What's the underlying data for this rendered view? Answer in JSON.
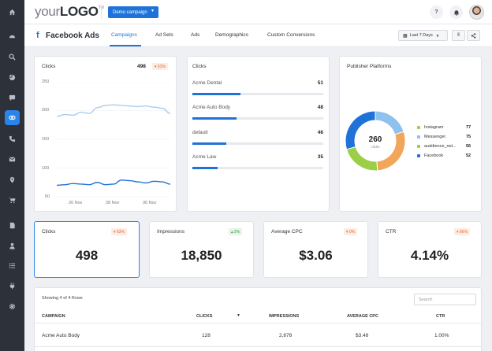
{
  "nav": {
    "icons": [
      "home-icon",
      "dashboard-icon",
      "search-icon",
      "pie-chart-icon",
      "chat-icon",
      "integrations-icon",
      "phone-icon",
      "mail-icon",
      "location-icon",
      "cart-icon",
      "document-icon",
      "user-icon",
      "list-icon",
      "plug-icon",
      "settings-icon"
    ],
    "active": "integrations-icon"
  },
  "topbar": {
    "logo_prefix": "your",
    "logo_bold": "LOGO",
    "logo_tm": "TM",
    "campaign_label": "Demo campaign",
    "help_label": "?"
  },
  "subheader": {
    "title": "Facebook Ads",
    "tabs": [
      "Campaigns",
      "Ad Sets",
      "Ads",
      "Demographics",
      "Custom Conversions"
    ],
    "active_tab": "Campaigns",
    "date_range": "Last 7 Days"
  },
  "clicks_chart": {
    "title": "Clicks",
    "value": "498",
    "delta": "▾ 63%",
    "y_ticks": [
      "250",
      "200",
      "150",
      "100",
      "50"
    ],
    "x_ticks": [
      "26 Nov",
      "28 Nov",
      "30 Nov"
    ]
  },
  "chart_data": {
    "type": "line",
    "title": "Clicks",
    "xlabel": "",
    "ylabel": "",
    "ylim": [
      50,
      250
    ],
    "x_ticks": [
      "26 Nov",
      "28 Nov",
      "30 Nov"
    ],
    "series": [
      {
        "role": "previous",
        "color": "#a9cdf0",
        "values": [
          190,
          193,
          192,
          197,
          195,
          205,
          209,
          210,
          209,
          208,
          207,
          208,
          206,
          204,
          195
        ]
      },
      {
        "role": "current",
        "color": "#1f73d8",
        "values": [
          70,
          71,
          73,
          72,
          71,
          75,
          71,
          72,
          79,
          78,
          76,
          74,
          77,
          76,
          72
        ]
      }
    ]
  },
  "clicks_list": {
    "title": "Clicks",
    "rows": [
      {
        "label": "Acme Dental",
        "value": "51",
        "fraction": 0.37
      },
      {
        "label": "Acme Auto Body",
        "value": "48",
        "fraction": 0.34
      },
      {
        "label": "default",
        "value": "46",
        "fraction": 0.26
      },
      {
        "label": "Acme Law",
        "value": "35",
        "fraction": 0.19
      }
    ]
  },
  "publisher": {
    "title": "Publisher Platforms",
    "total": "260",
    "total_label": "clicks",
    "items": [
      {
        "label": "Instagram",
        "value": "77",
        "amount": 77,
        "color": "#1f73d8"
      },
      {
        "label": "Messenger",
        "value": "75",
        "amount": 75,
        "color": "#f2a65a"
      },
      {
        "label": "auddience_net...",
        "value": "56",
        "amount": 56,
        "color": "#9ccf46"
      },
      {
        "label": "Facebook",
        "value": "52",
        "amount": 52,
        "color": "#8fc1ee"
      }
    ]
  },
  "kpis": [
    {
      "title": "Clicks",
      "value": "498",
      "delta": "▾ 63%",
      "dir": "down"
    },
    {
      "title": "Impressions",
      "value": "18,850",
      "delta": "▴ 2%",
      "dir": "up"
    },
    {
      "title": "Average CPC",
      "value": "$3.06",
      "delta": "▾ 0%",
      "dir": "down"
    },
    {
      "title": "CTR",
      "value": "4.14%",
      "delta": "▾ 66%",
      "dir": "down"
    }
  ],
  "table": {
    "showing": "Showing 4 of 4 Rows",
    "search_placeholder": "Search",
    "headers": [
      "CAMPAIGN",
      "CLICKS",
      "IMPRESSIONS",
      "AVERAGE CPC",
      "CTR"
    ],
    "rows": [
      [
        "Acme Auto Body",
        "128",
        "2,878",
        "$3.48",
        "1.00%"
      ]
    ]
  }
}
